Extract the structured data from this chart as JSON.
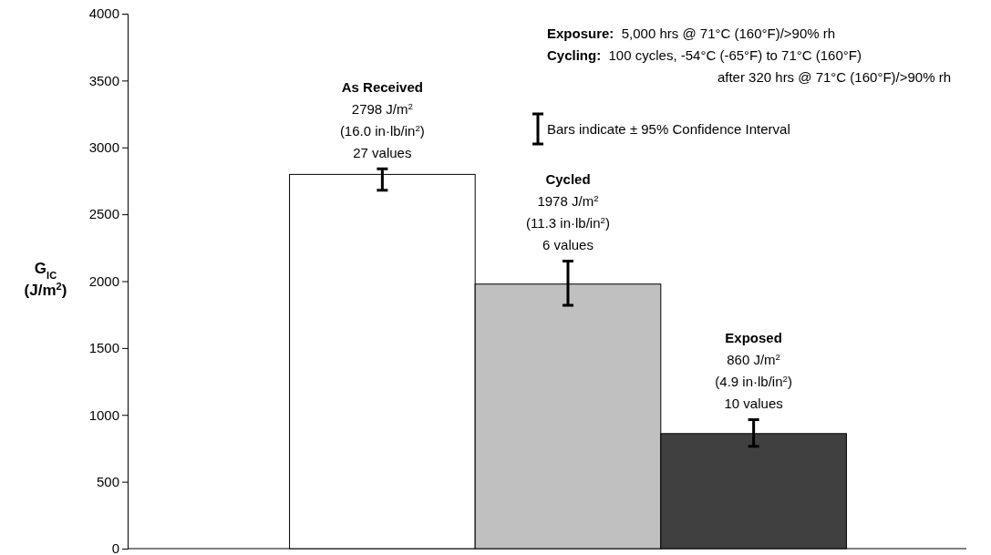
{
  "chart_data": {
    "type": "bar",
    "ylabel": "G$_{IC}$\n(J/m$^{2}$)",
    "categories": [
      "As Received",
      "Cycled",
      "Exposed"
    ],
    "values": [
      2798,
      1978,
      860
    ],
    "colors": [
      "#ffffff",
      "#c0c0c0",
      "#404040"
    ],
    "errors": [
      [
        2680,
        2840
      ],
      [
        1820,
        2150
      ],
      [
        765,
        965
      ]
    ],
    "value_labels": [
      "2798 J/m$^{2}$\n(16.0 in·lb/in$^{2}$)\n27 values",
      "1978 J/m$^{2}$\n(11.3 in·lb/in$^{2}$)\n6 values",
      "860 J/m$^{2}$\n(4.9 in·lb/in$^{2}$)\n10 values"
    ],
    "ylim": [
      0,
      4000
    ],
    "yticks": [
      0,
      500,
      1000,
      1500,
      2000,
      2500,
      3000,
      3500,
      4000
    ],
    "annotations": [
      "Exposure:  5,000 hrs @ 71°C (160°F)/>90% rh",
      "Cycling:  100 cycles, -54°C (-65°F) to 71°C (160°F)",
      "after 320 hrs @ 71°C (160°F)/>90% rh",
      "Bars indicate ± 95% Confidence Interval"
    ]
  }
}
